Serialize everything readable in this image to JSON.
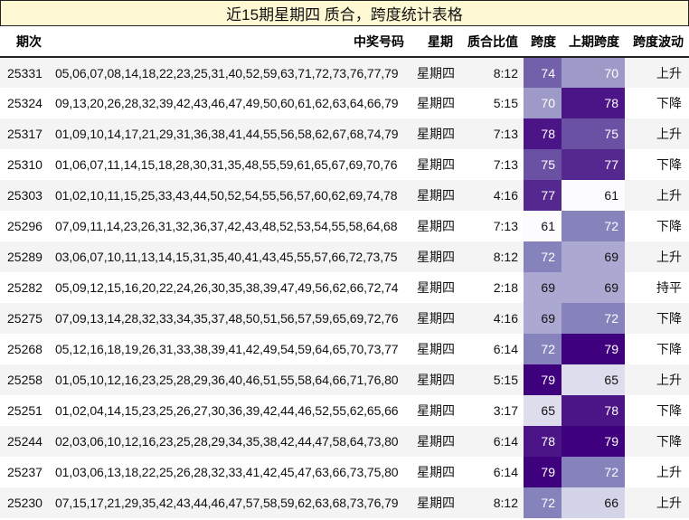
{
  "title": "近15期星期四 质合，跨度统计表格",
  "columns": {
    "issue": "期次",
    "numbers": "中奖号码",
    "weekday": "星期",
    "ratio": "质合比值",
    "span": "跨度",
    "prev_span": "上期跨度",
    "trend": "跨度波动"
  },
  "heat_colors": {
    "61": "#fcfbfd",
    "65": "#dedded",
    "66": "#d4d4e8",
    "69": "#aba8d1",
    "70": "#9e9ac8",
    "72": "#8682bc",
    "74": "#7360ab",
    "75": "#6b51a3",
    "77": "#55288f",
    "78": "#4b1587",
    "79": "#3f007d"
  },
  "light_text_threshold": 70,
  "rows": [
    {
      "issue": "25331",
      "numbers": "05,06,07,08,14,18,22,23,25,31,40,52,59,63,71,72,73,76,77,79",
      "weekday": "星期四",
      "ratio": "8:12",
      "span": "74",
      "prev_span": "70",
      "trend": "上升"
    },
    {
      "issue": "25324",
      "numbers": "09,13,20,26,28,32,39,42,43,46,47,49,50,60,61,62,63,64,66,79",
      "weekday": "星期四",
      "ratio": "5:15",
      "span": "70",
      "prev_span": "78",
      "trend": "下降"
    },
    {
      "issue": "25317",
      "numbers": "01,09,10,14,17,21,29,31,36,38,41,44,55,56,58,62,67,68,74,79",
      "weekday": "星期四",
      "ratio": "7:13",
      "span": "78",
      "prev_span": "75",
      "trend": "上升"
    },
    {
      "issue": "25310",
      "numbers": "01,06,07,11,14,15,18,28,30,31,35,48,55,59,61,65,67,69,70,76",
      "weekday": "星期四",
      "ratio": "7:13",
      "span": "75",
      "prev_span": "77",
      "trend": "下降"
    },
    {
      "issue": "25303",
      "numbers": "01,02,10,11,15,25,33,43,44,50,52,54,55,56,57,60,62,69,74,78",
      "weekday": "星期四",
      "ratio": "4:16",
      "span": "77",
      "prev_span": "61",
      "trend": "上升"
    },
    {
      "issue": "25296",
      "numbers": "07,09,11,14,23,26,31,32,36,37,42,43,48,52,53,54,55,58,64,68",
      "weekday": "星期四",
      "ratio": "7:13",
      "span": "61",
      "prev_span": "72",
      "trend": "下降"
    },
    {
      "issue": "25289",
      "numbers": "03,06,07,10,11,13,14,15,31,35,40,41,43,45,55,57,66,72,73,75",
      "weekday": "星期四",
      "ratio": "8:12",
      "span": "72",
      "prev_span": "69",
      "trend": "上升"
    },
    {
      "issue": "25282",
      "numbers": "05,09,12,15,16,20,22,24,26,30,35,38,39,47,49,56,62,66,72,74",
      "weekday": "星期四",
      "ratio": "2:18",
      "span": "69",
      "prev_span": "69",
      "trend": "持平"
    },
    {
      "issue": "25275",
      "numbers": "07,09,13,14,28,32,33,34,35,37,48,50,51,56,57,59,65,69,72,76",
      "weekday": "星期四",
      "ratio": "4:16",
      "span": "69",
      "prev_span": "72",
      "trend": "下降"
    },
    {
      "issue": "25268",
      "numbers": "05,12,16,18,19,26,31,33,38,39,41,42,49,54,59,64,65,70,73,77",
      "weekday": "星期四",
      "ratio": "6:14",
      "span": "72",
      "prev_span": "79",
      "trend": "下降"
    },
    {
      "issue": "25258",
      "numbers": "01,05,10,12,16,23,25,28,29,36,40,46,51,55,58,64,66,71,76,80",
      "weekday": "星期四",
      "ratio": "5:15",
      "span": "79",
      "prev_span": "65",
      "trend": "上升"
    },
    {
      "issue": "25251",
      "numbers": "01,02,04,14,15,23,25,26,27,30,36,39,42,44,46,52,55,62,65,66",
      "weekday": "星期四",
      "ratio": "3:17",
      "span": "65",
      "prev_span": "78",
      "trend": "下降"
    },
    {
      "issue": "25244",
      "numbers": "02,03,06,10,12,16,23,25,28,29,34,35,38,42,44,47,58,64,73,80",
      "weekday": "星期四",
      "ratio": "6:14",
      "span": "78",
      "prev_span": "79",
      "trend": "下降"
    },
    {
      "issue": "25237",
      "numbers": "01,03,06,13,18,22,25,26,28,32,33,41,42,45,47,63,66,73,75,80",
      "weekday": "星期四",
      "ratio": "6:14",
      "span": "79",
      "prev_span": "72",
      "trend": "上升"
    },
    {
      "issue": "25230",
      "numbers": "07,15,17,21,29,35,42,43,44,46,47,57,58,59,62,63,68,73,76,79",
      "weekday": "星期四",
      "ratio": "8:12",
      "span": "72",
      "prev_span": "66",
      "trend": "上升"
    }
  ]
}
